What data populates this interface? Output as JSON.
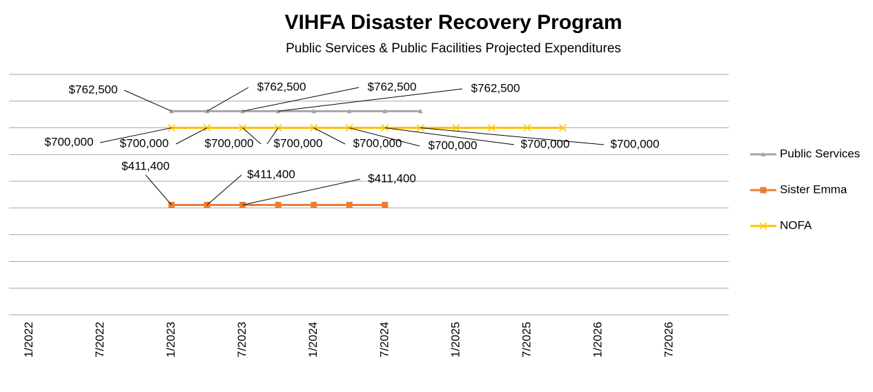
{
  "chart_data": {
    "type": "line",
    "title": "VIHFA Disaster Recovery Program",
    "subtitle": "Public Services & Public Facilities Projected Expenditures",
    "x": [
      "1/2023",
      "4/2023",
      "7/2023",
      "10/2023",
      "1/2024",
      "4/2024",
      "7/2024",
      "10/2024",
      "1/2025",
      "4/2025",
      "7/2025",
      "10/2025"
    ],
    "series": [
      {
        "name": "Public Services",
        "color": "#a5a5a5",
        "marker": "triangle",
        "values": [
          762500,
          762500,
          762500,
          762500,
          762500,
          762500,
          762500,
          762500,
          null,
          null,
          null,
          null
        ],
        "value_labels": [
          "$762,500",
          "$762,500",
          "$762,500",
          "$762,500",
          null,
          null,
          null,
          null,
          null,
          null,
          null,
          null
        ]
      },
      {
        "name": "Sister Emma",
        "color": "#ed7d31",
        "marker": "square",
        "values": [
          411400,
          411400,
          411400,
          411400,
          411400,
          411400,
          411400,
          null,
          null,
          null,
          null,
          null
        ],
        "value_labels": [
          "$411,400",
          "$411,400",
          "$411,400",
          null,
          null,
          null,
          null,
          null,
          null,
          null,
          null,
          null
        ]
      },
      {
        "name": "NOFA",
        "color": "#ffc000",
        "marker": "x",
        "values": [
          700000,
          700000,
          700000,
          700000,
          700000,
          700000,
          700000,
          700000,
          700000,
          700000,
          700000,
          700000
        ],
        "value_labels": [
          "$700,000",
          "$700,000",
          "$700,000",
          "$700,000",
          "$700,000",
          "$700,000",
          "$700,000",
          "$700,000",
          null,
          null,
          null,
          null
        ]
      }
    ],
    "xlim": [
      "11/2021",
      "12/2026"
    ],
    "xticks": [
      "1/2022",
      "7/2022",
      "1/2023",
      "7/2023",
      "1/2024",
      "7/2024",
      "1/2025",
      "7/2025",
      "1/2026",
      "7/2026"
    ],
    "ylim": [
      0,
      900000
    ],
    "yticks": [
      0,
      100000,
      200000,
      300000,
      400000,
      500000,
      600000,
      700000,
      800000,
      900000
    ],
    "grid": true,
    "legend": "right"
  }
}
